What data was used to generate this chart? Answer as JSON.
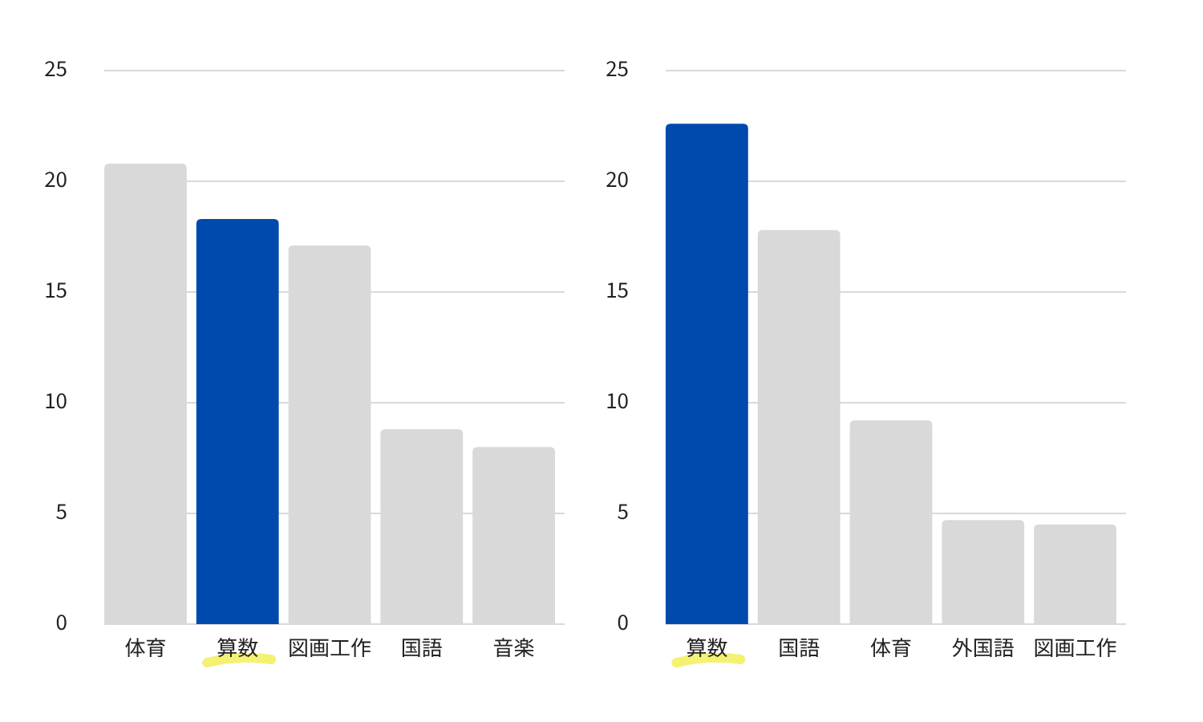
{
  "chart_data": [
    {
      "type": "bar",
      "categories": [
        "体育",
        "算数",
        "図画工作",
        "国語",
        "音楽"
      ],
      "values": [
        20.8,
        18.3,
        17.1,
        8.8,
        8.0
      ],
      "colors": [
        "#d9d9d9",
        "#004aad",
        "#d9d9d9",
        "#d9d9d9",
        "#d9d9d9"
      ],
      "ylim": [
        0,
        25
      ],
      "yticks": [
        0,
        5,
        10,
        15,
        20,
        25
      ],
      "grid": "y"
    },
    {
      "type": "bar",
      "categories": [
        "算数",
        "国語",
        "体育",
        "外国語",
        "図画工作"
      ],
      "values": [
        22.6,
        17.8,
        9.2,
        4.7,
        4.5
      ],
      "colors": [
        "#004aad",
        "#d9d9d9",
        "#d9d9d9",
        "#d9d9d9",
        "#d9d9d9"
      ],
      "ylim": [
        0,
        25
      ],
      "yticks": [
        0,
        5,
        10,
        15,
        20,
        25
      ],
      "grid": "y"
    }
  ]
}
